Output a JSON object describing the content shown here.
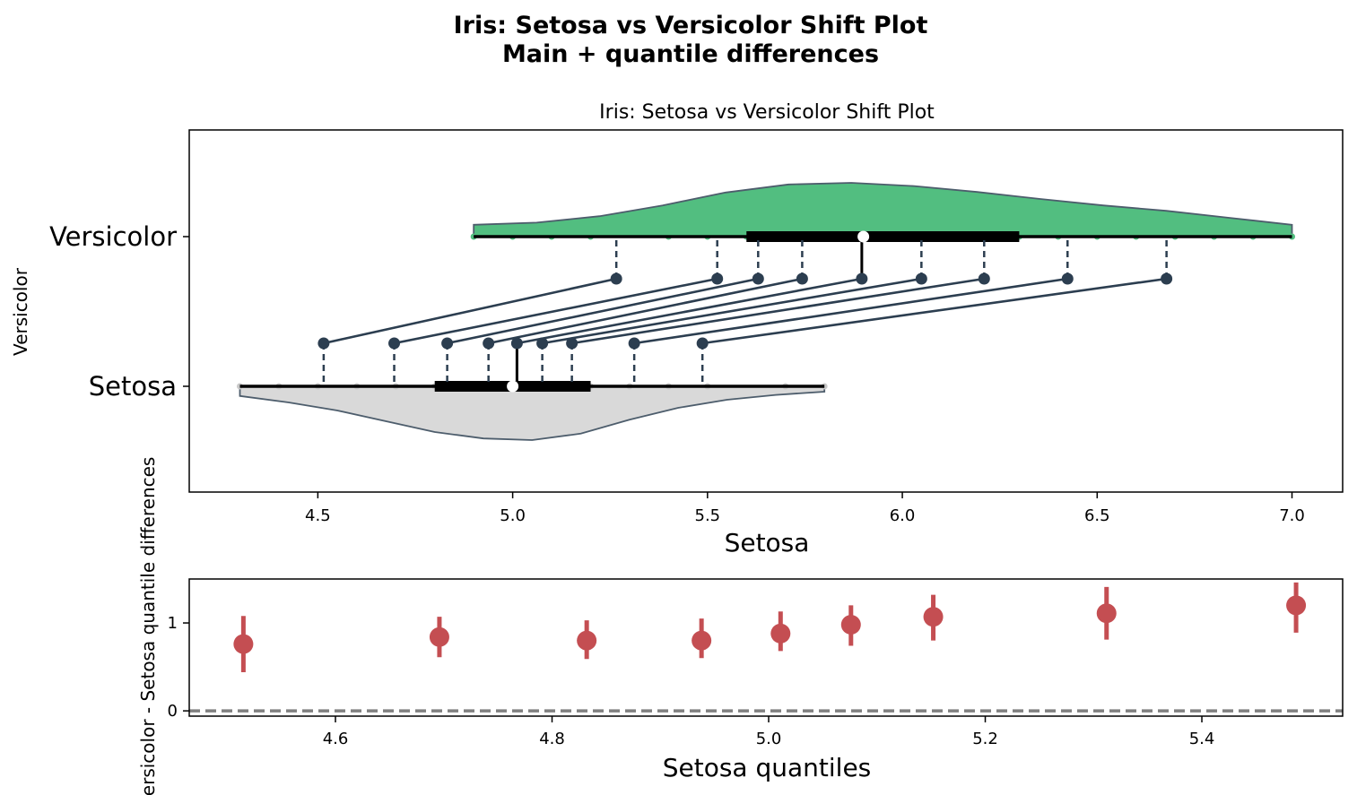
{
  "figure": {
    "suptitle_line1": "Iris: Setosa vs Versicolor Shift Plot",
    "suptitle_line2": "Main + quantile differences"
  },
  "colors": {
    "versicolor_fill": "#52be80",
    "setosa_fill": "#d9d9d9",
    "outline": "#4d5d6c",
    "quantile": "#2c3e50",
    "difference": "#c44e52",
    "zero_line": "#808080"
  },
  "chart_data": [
    {
      "type": "scatter",
      "title": "Iris: Setosa vs Versicolor Shift Plot",
      "xlabel": "Setosa",
      "ylabel": "Versicolor",
      "xlim": [
        4.17,
        7.13
      ],
      "xticks": [
        "4.5",
        "5.0",
        "5.5",
        "6.0",
        "6.5",
        "7.0"
      ],
      "categories": [
        "Setosa",
        "Versicolor"
      ],
      "versicolor": {
        "name": "Versicolor",
        "min": 4.9,
        "max": 7.0,
        "q1": 5.6,
        "median": 5.9,
        "q3": 6.3,
        "points": [
          4.9,
          5.0,
          5.1,
          5.2,
          5.4,
          5.5,
          5.6,
          5.7,
          5.8,
          5.9,
          6.0,
          6.1,
          6.2,
          6.3,
          6.4,
          6.5,
          6.6,
          6.7,
          6.8,
          6.9,
          7.0
        ],
        "density": [
          0.22,
          0.26,
          0.38,
          0.58,
          0.82,
          0.97,
          1.0,
          0.94,
          0.83,
          0.7,
          0.58,
          0.48,
          0.35,
          0.22
        ]
      },
      "setosa": {
        "name": "Setosa",
        "min": 4.3,
        "max": 5.8,
        "q1": 4.8,
        "median": 5.0,
        "q3": 5.2,
        "points": [
          4.3,
          4.4,
          4.5,
          4.6,
          4.7,
          4.8,
          4.9,
          5.0,
          5.1,
          5.2,
          5.3,
          5.4,
          5.5,
          5.7,
          5.8
        ],
        "density": [
          0.18,
          0.3,
          0.45,
          0.65,
          0.85,
          0.97,
          1.0,
          0.88,
          0.62,
          0.4,
          0.25,
          0.16,
          0.1
        ]
      },
      "deciles": {
        "setosa": [
          4.515,
          4.696,
          4.832,
          4.938,
          5.011,
          5.076,
          5.152,
          5.312,
          5.487
        ],
        "versicolor": [
          5.266,
          5.525,
          5.63,
          5.743,
          5.896,
          6.049,
          6.21,
          6.424,
          6.678
        ]
      }
    },
    {
      "type": "scatter",
      "xlabel": "Setosa quantiles",
      "ylabel": "Versicolor - Setosa quantile differences",
      "xlim": [
        4.465,
        5.53
      ],
      "ylim": [
        -0.06,
        1.5
      ],
      "xticks": [
        "4.6",
        "4.8",
        "5.0",
        "5.2",
        "5.4"
      ],
      "yticks": [
        "0",
        "1"
      ],
      "reference_line": 0,
      "x": [
        4.515,
        4.696,
        4.832,
        4.938,
        5.011,
        5.076,
        5.152,
        5.312,
        5.487
      ],
      "y": [
        0.76,
        0.84,
        0.8,
        0.8,
        0.88,
        0.98,
        1.07,
        1.11,
        1.2
      ],
      "ci_low": [
        0.44,
        0.61,
        0.59,
        0.6,
        0.68,
        0.74,
        0.8,
        0.81,
        0.89
      ],
      "ci_high": [
        1.08,
        1.07,
        1.03,
        1.05,
        1.13,
        1.2,
        1.32,
        1.41,
        1.46
      ]
    }
  ]
}
